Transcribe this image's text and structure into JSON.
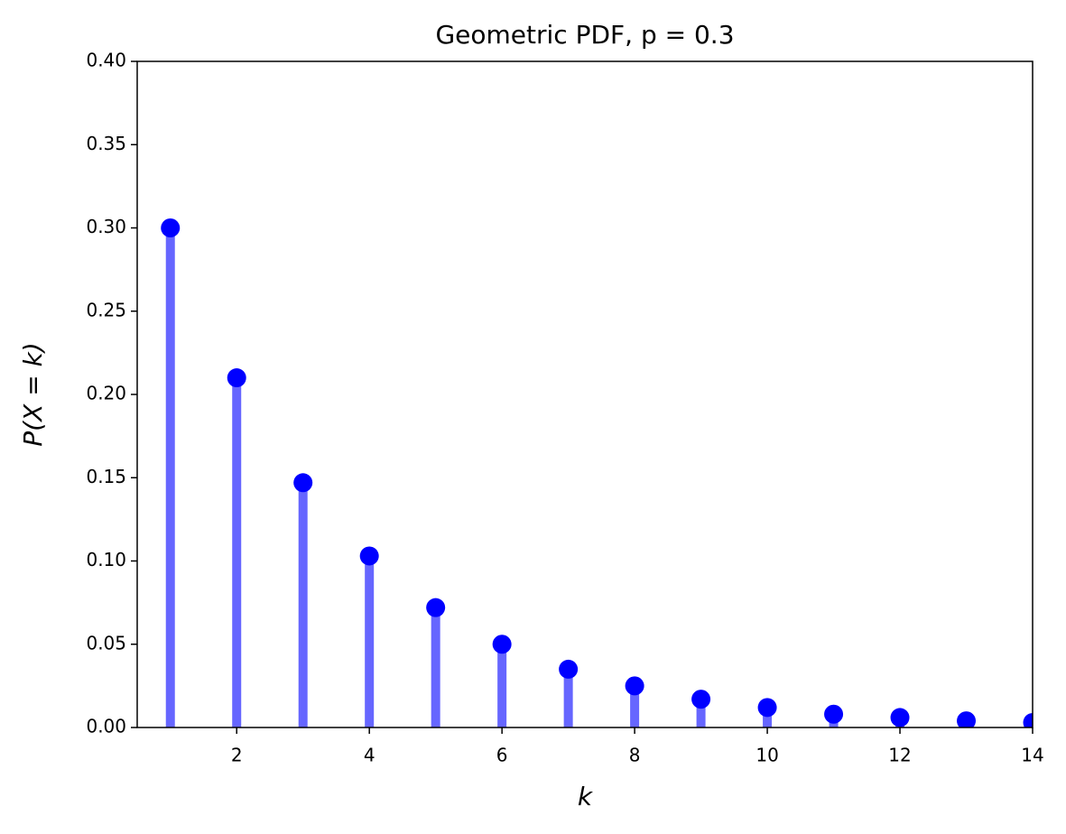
{
  "chart_data": {
    "type": "stem",
    "title": "Geometric PDF, p = 0.3",
    "x_label": "k",
    "y_label": "P(X = k)",
    "x": [
      1,
      2,
      3,
      4,
      5,
      6,
      7,
      8,
      9,
      10,
      11,
      12,
      13,
      14
    ],
    "values": [
      0.3,
      0.21,
      0.147,
      0.103,
      0.072,
      0.05,
      0.035,
      0.025,
      0.017,
      0.012,
      0.008,
      0.006,
      0.004,
      0.003
    ],
    "stem_color": "#6666ff",
    "marker_color": "#0000ff",
    "xlim": [
      0.5,
      14
    ],
    "xticks": [
      2,
      4,
      6,
      8,
      10,
      12,
      14
    ],
    "ylim": [
      0,
      0.4
    ],
    "yticks": [
      {
        "value": 0,
        "label": "0.00"
      },
      {
        "value": 0.05,
        "label": "0.05"
      },
      {
        "value": 0.1,
        "label": "0.10"
      },
      {
        "value": 0.15,
        "label": "0.15"
      },
      {
        "value": 0.2,
        "label": "0.20"
      },
      {
        "value": 0.25,
        "label": "0.25"
      },
      {
        "value": 0.3,
        "label": "0.30"
      },
      {
        "value": 0.35,
        "label": "0.35"
      },
      {
        "value": 0.4,
        "label": "0.40"
      }
    ]
  }
}
